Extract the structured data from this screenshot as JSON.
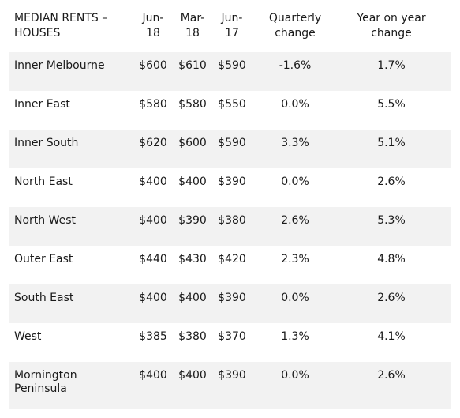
{
  "header": {
    "region": "MEDIAN RENTS –\nHOUSES",
    "jun18": "Jun-\n18",
    "mar18": "Mar-\n18",
    "jun17": "Jun-\n17",
    "quarterly": "Quarterly\nchange",
    "yoy": "Year on year\nchange"
  },
  "rows": [
    {
      "region": "Inner Melbourne",
      "jun18": "$600",
      "mar18": "$610",
      "jun17": "$590",
      "quarterly": "-1.6%",
      "yoy": "1.7%"
    },
    {
      "region": "Inner East",
      "jun18": "$580",
      "mar18": "$580",
      "jun17": "$550",
      "quarterly": "0.0%",
      "yoy": "5.5%"
    },
    {
      "region": "Inner South",
      "jun18": "$620",
      "mar18": "$600",
      "jun17": "$590",
      "quarterly": "3.3%",
      "yoy": "5.1%"
    },
    {
      "region": "North East",
      "jun18": "$400",
      "mar18": "$400",
      "jun17": "$390",
      "quarterly": "0.0%",
      "yoy": "2.6%"
    },
    {
      "region": "North West",
      "jun18": "$400",
      "mar18": "$390",
      "jun17": "$380",
      "quarterly": "2.6%",
      "yoy": "5.3%"
    },
    {
      "region": "Outer East",
      "jun18": "$440",
      "mar18": "$430",
      "jun17": "$420",
      "quarterly": "2.3%",
      "yoy": "4.8%"
    },
    {
      "region": "South East",
      "jun18": "$400",
      "mar18": "$400",
      "jun17": "$390",
      "quarterly": "0.0%",
      "yoy": "2.6%"
    },
    {
      "region": "West",
      "jun18": "$385",
      "mar18": "$380",
      "jun17": "$370",
      "quarterly": "1.3%",
      "yoy": "4.1%"
    },
    {
      "region": "Mornington\nPeninsula",
      "jun18": "$400",
      "mar18": "$400",
      "jun17": "$390",
      "quarterly": "0.0%",
      "yoy": "2.6%"
    }
  ]
}
